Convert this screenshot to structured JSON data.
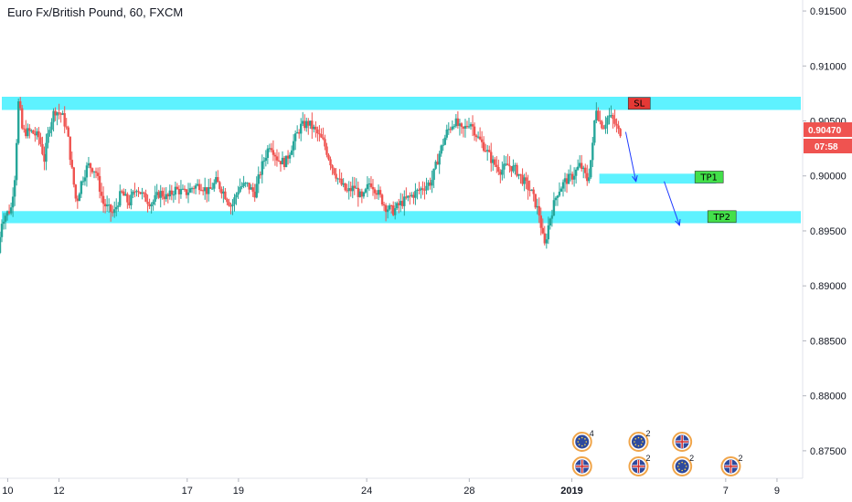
{
  "header": {
    "title": "Euro Fx/British Pound, 60, FXCM"
  },
  "colors": {
    "up": "#26a69a",
    "down": "#ef5350",
    "zone": "#5ef2ff",
    "label_red": "#e53935",
    "label_green": "#43e04a",
    "arrow": "#1e3aff",
    "price_tag": "#ef5350"
  },
  "price_tag": {
    "price": "0.90470",
    "countdown": "07:58"
  },
  "chart_data": {
    "type": "candlestick",
    "title": "Euro Fx/British Pound, 60, FXCM",
    "ylim": [
      0.8725,
      0.916
    ],
    "y_ticks": [
      {
        "value": 0.915,
        "label": "0.91500"
      },
      {
        "value": 0.91,
        "label": "0.91000"
      },
      {
        "value": 0.905,
        "label": "0.90500"
      },
      {
        "value": 0.9,
        "label": "0.90000"
      },
      {
        "value": 0.895,
        "label": "0.89500"
      },
      {
        "value": 0.89,
        "label": "0.89000"
      },
      {
        "value": 0.885,
        "label": "0.88500"
      },
      {
        "value": 0.88,
        "label": "0.88000"
      },
      {
        "value": 0.875,
        "label": "0.87500"
      }
    ],
    "x_ticks": [
      {
        "day": 10,
        "label": "10"
      },
      {
        "day": 12,
        "label": "12"
      },
      {
        "day": 17,
        "label": "17"
      },
      {
        "day": 19,
        "label": "19"
      },
      {
        "day": 24,
        "label": "24"
      },
      {
        "day": 28,
        "label": "28"
      },
      {
        "day": 32,
        "label": "2019"
      },
      {
        "day": 38,
        "label": "7"
      },
      {
        "day": 40,
        "label": "9"
      }
    ],
    "xlim": [
      9.7,
      41.0
    ],
    "path": [
      [
        9.7,
        0.893
      ],
      [
        9.85,
        0.896
      ],
      [
        10.0,
        0.8965
      ],
      [
        10.2,
        0.897
      ],
      [
        10.35,
        0.9
      ],
      [
        10.5,
        0.907
      ],
      [
        10.65,
        0.904
      ],
      [
        11.0,
        0.904
      ],
      [
        11.3,
        0.9035
      ],
      [
        11.5,
        0.9015
      ],
      [
        11.7,
        0.9045
      ],
      [
        11.9,
        0.906
      ],
      [
        12.2,
        0.9055
      ],
      [
        12.4,
        0.904
      ],
      [
        12.55,
        0.901
      ],
      [
        12.75,
        0.8975
      ],
      [
        12.95,
        0.8995
      ],
      [
        13.2,
        0.901
      ],
      [
        13.5,
        0.9005
      ],
      [
        13.8,
        0.8975
      ],
      [
        14.2,
        0.8965
      ],
      [
        14.5,
        0.8985
      ],
      [
        14.8,
        0.8975
      ],
      [
        15.1,
        0.899
      ],
      [
        15.4,
        0.898
      ],
      [
        15.7,
        0.8975
      ],
      [
        16.0,
        0.8985
      ],
      [
        16.3,
        0.898
      ],
      [
        16.6,
        0.8988
      ],
      [
        17.0,
        0.8984
      ],
      [
        17.3,
        0.899
      ],
      [
        17.6,
        0.8992
      ],
      [
        17.9,
        0.8985
      ],
      [
        18.2,
        0.8995
      ],
      [
        18.5,
        0.8985
      ],
      [
        18.8,
        0.8972
      ],
      [
        19.1,
        0.899
      ],
      [
        19.4,
        0.8992
      ],
      [
        19.7,
        0.8984
      ],
      [
        20.0,
        0.901
      ],
      [
        20.3,
        0.903
      ],
      [
        20.6,
        0.9015
      ],
      [
        20.9,
        0.9012
      ],
      [
        21.2,
        0.903
      ],
      [
        21.5,
        0.9045
      ],
      [
        21.8,
        0.9048
      ],
      [
        22.1,
        0.904
      ],
      [
        22.4,
        0.903
      ],
      [
        22.7,
        0.901
      ],
      [
        23.0,
        0.8995
      ],
      [
        23.3,
        0.8985
      ],
      [
        23.6,
        0.899
      ],
      [
        23.9,
        0.8978
      ],
      [
        24.2,
        0.8995
      ],
      [
        24.5,
        0.8985
      ],
      [
        24.8,
        0.8972
      ],
      [
        25.1,
        0.8968
      ],
      [
        25.4,
        0.8975
      ],
      [
        25.7,
        0.898
      ],
      [
        26.0,
        0.8985
      ],
      [
        26.3,
        0.899
      ],
      [
        26.6,
        0.8995
      ],
      [
        26.9,
        0.902
      ],
      [
        27.2,
        0.904
      ],
      [
        27.5,
        0.905
      ],
      [
        27.8,
        0.904
      ],
      [
        28.1,
        0.905
      ],
      [
        28.4,
        0.9035
      ],
      [
        28.7,
        0.9025
      ],
      [
        29.0,
        0.9012
      ],
      [
        29.3,
        0.9005
      ],
      [
        29.6,
        0.901
      ],
      [
        29.9,
        0.9005
      ],
      [
        30.2,
        0.8995
      ],
      [
        30.5,
        0.8985
      ],
      [
        30.8,
        0.8965
      ],
      [
        31.0,
        0.8935
      ],
      [
        31.2,
        0.896
      ],
      [
        31.5,
        0.8985
      ],
      [
        31.8,
        0.8995
      ],
      [
        32.1,
        0.9
      ],
      [
        32.4,
        0.901
      ],
      [
        32.7,
        0.8995
      ],
      [
        32.9,
        0.903
      ],
      [
        33.0,
        0.9065
      ],
      [
        33.15,
        0.905
      ],
      [
        33.3,
        0.9045
      ],
      [
        33.5,
        0.9055
      ],
      [
        33.7,
        0.905
      ],
      [
        33.9,
        0.904
      ]
    ],
    "zones": [
      {
        "name": "resistance",
        "y_top": 0.9072,
        "y_bottom": 0.906,
        "x_start": 9.7,
        "x_end": 41.0
      },
      {
        "name": "support",
        "y_top": 0.8968,
        "y_bottom": 0.8957,
        "x_start": 9.7,
        "x_end": 41.0
      },
      {
        "name": "tp1-zone",
        "y_top": 0.9002,
        "y_bottom": 0.8993,
        "x_start": 33.0,
        "x_end": 37.7
      }
    ],
    "labels": [
      {
        "text": "SL",
        "day": 34.2,
        "value": 0.9066,
        "style": "red"
      },
      {
        "text": "TP1",
        "day": 36.8,
        "value": 0.8999,
        "style": "green"
      },
      {
        "text": "TP2",
        "day": 37.3,
        "value": 0.8963,
        "style": "green"
      }
    ],
    "arrows": [
      {
        "from_day": 34.1,
        "from_value": 0.904,
        "to_day": 34.5,
        "to_value": 0.8995
      },
      {
        "from_day": 35.6,
        "from_value": 0.8995,
        "to_day": 36.2,
        "to_value": 0.8955
      }
    ],
    "events": [
      {
        "day": 32.4,
        "flag": "eu",
        "count": "4",
        "row": 0
      },
      {
        "day": 34.6,
        "flag": "eu",
        "count": "2",
        "row": 0
      },
      {
        "day": 36.3,
        "flag": "uk",
        "count": "",
        "row": 0
      },
      {
        "day": 32.4,
        "flag": "uk",
        "count": "",
        "row": 1
      },
      {
        "day": 34.6,
        "flag": "uk",
        "count": "2",
        "row": 1
      },
      {
        "day": 36.3,
        "flag": "eu",
        "count": "2",
        "row": 1
      },
      {
        "day": 38.2,
        "flag": "uk",
        "count": "2",
        "row": 1
      }
    ]
  }
}
